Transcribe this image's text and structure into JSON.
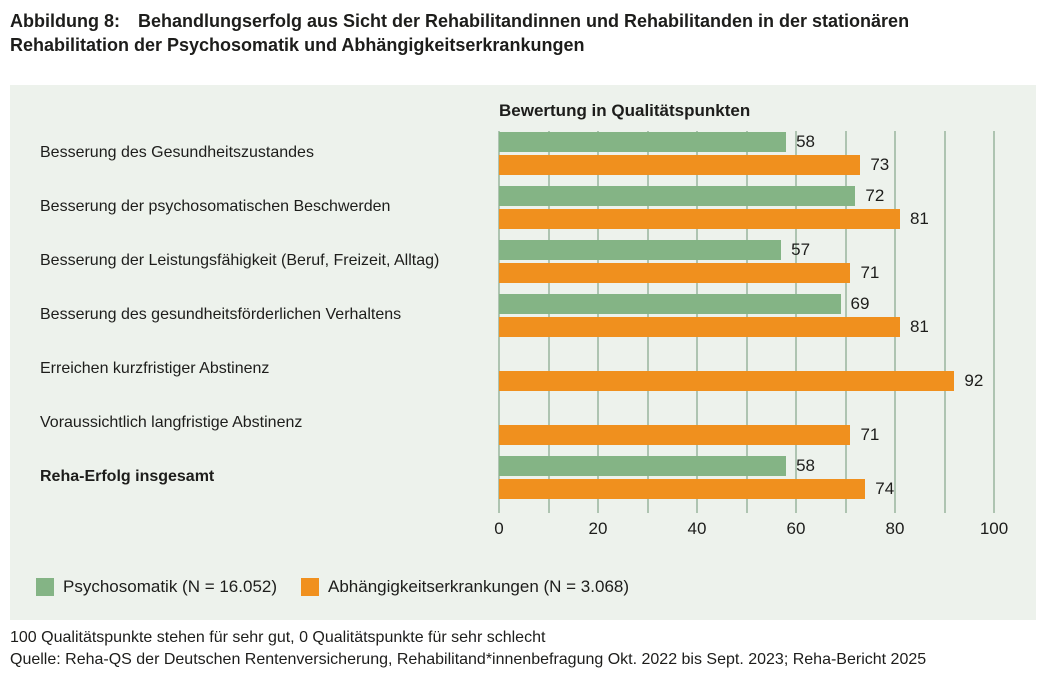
{
  "figure_caption": {
    "label": "Abbildung 8:",
    "title": "Behandlungserfolg aus Sicht der Rehabilitandinnen und Rehabilitanden in der stationären Rehabilitation der Psychosomatik und Abhängigkeitserkrankungen"
  },
  "chart_data": {
    "type": "bar",
    "orientation": "horizontal",
    "axis_title": "Bewertung in Qualitätspunkten",
    "categories": [
      "Besserung des Gesundheitszustandes",
      "Besserung der psychosomatischen Beschwerden",
      "Besserung der Leistungsfähigkeit (Beruf, Freizeit, Alltag)",
      "Besserung des gesundheitsförderlichen Verhaltens",
      "Erreichen kurzfristiger Abstinenz",
      "Voraussichtlich langfristige Abstinenz",
      "Reha-Erfolg insgesamt"
    ],
    "bold_categories": [
      "Reha-Erfolg insgesamt"
    ],
    "series": [
      {
        "name": "Psychosomatik (N = 16.052)",
        "color": "#84b485",
        "values": [
          58,
          72,
          57,
          69,
          null,
          null,
          58
        ]
      },
      {
        "name": "Abhängigkeitserkrankungen (N = 3.068)",
        "color": "#f0901e",
        "values": [
          73,
          81,
          71,
          81,
          92,
          71,
          74
        ]
      }
    ],
    "xlim": [
      0,
      100
    ],
    "gridline_step": 10,
    "xtick_labels": [
      0,
      20,
      40,
      60,
      80,
      100
    ],
    "grid": true,
    "legend_position": "bottom-left",
    "colors": {
      "plot_background": "#edf2ec",
      "gridline": "#aec4b1",
      "text": "#1d1d1b"
    }
  },
  "footnotes": {
    "note": "100 Qualitätspunkte stehen für sehr gut, 0 Qualitätspunkte für sehr schlecht",
    "source": "Quelle: Reha-QS der Deutschen Rentenversicherung, Rehabilitand*innenbefragung Okt. 2022 bis Sept. 2023; Reha-Bericht 2025"
  }
}
